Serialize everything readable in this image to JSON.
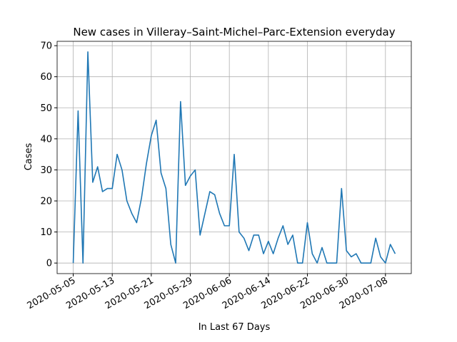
{
  "chart_data": {
    "type": "line",
    "title": "New cases in Villeray–Saint-Michel–Parc-Extension everyday",
    "xlabel": "In Last 67 Days",
    "ylabel": "Cases",
    "x": [
      "2020-05-05",
      "2020-05-06",
      "2020-05-07",
      "2020-05-08",
      "2020-05-09",
      "2020-05-10",
      "2020-05-11",
      "2020-05-12",
      "2020-05-13",
      "2020-05-14",
      "2020-05-15",
      "2020-05-16",
      "2020-05-17",
      "2020-05-18",
      "2020-05-19",
      "2020-05-20",
      "2020-05-21",
      "2020-05-22",
      "2020-05-23",
      "2020-05-24",
      "2020-05-25",
      "2020-05-26",
      "2020-05-27",
      "2020-05-28",
      "2020-05-29",
      "2020-05-30",
      "2020-05-31",
      "2020-06-01",
      "2020-06-02",
      "2020-06-03",
      "2020-06-04",
      "2020-06-05",
      "2020-06-06",
      "2020-06-07",
      "2020-06-08",
      "2020-06-09",
      "2020-06-10",
      "2020-06-11",
      "2020-06-12",
      "2020-06-13",
      "2020-06-14",
      "2020-06-15",
      "2020-06-16",
      "2020-06-17",
      "2020-06-18",
      "2020-06-19",
      "2020-06-20",
      "2020-06-21",
      "2020-06-22",
      "2020-06-23",
      "2020-06-24",
      "2020-06-25",
      "2020-06-26",
      "2020-06-27",
      "2020-06-28",
      "2020-06-29",
      "2020-06-30",
      "2020-07-01",
      "2020-07-02",
      "2020-07-03",
      "2020-07-04",
      "2020-07-05",
      "2020-07-06",
      "2020-07-07",
      "2020-07-08",
      "2020-07-09",
      "2020-07-10"
    ],
    "series": [
      {
        "name": "Cases",
        "color": "#1f77b4",
        "values": [
          0,
          49,
          0,
          68,
          26,
          31,
          23,
          24,
          24,
          35,
          30,
          20,
          16,
          13,
          21,
          32,
          41,
          46,
          29,
          24,
          6,
          0,
          52,
          25,
          28,
          30,
          9,
          16,
          23,
          22,
          16,
          12,
          12,
          35,
          10,
          8,
          4,
          9,
          9,
          3,
          7,
          3,
          8,
          12,
          6,
          9,
          0,
          0,
          13,
          3,
          0,
          5,
          0,
          0,
          0,
          24,
          4,
          2,
          3,
          0,
          0,
          0,
          8,
          2,
          0,
          6,
          3
        ]
      }
    ],
    "xlim": [
      "2020-05-01T16:48",
      "2020-07-13T07:12"
    ],
    "xticks": [
      "2020-05-05",
      "2020-05-13",
      "2020-05-21",
      "2020-05-29",
      "2020-06-06",
      "2020-06-14",
      "2020-06-22",
      "2020-06-30",
      "2020-07-08"
    ],
    "ylim": [
      -3.4,
      71.4
    ],
    "yticks": [
      0,
      10,
      20,
      30,
      40,
      50,
      60,
      70
    ],
    "grid": true
  }
}
